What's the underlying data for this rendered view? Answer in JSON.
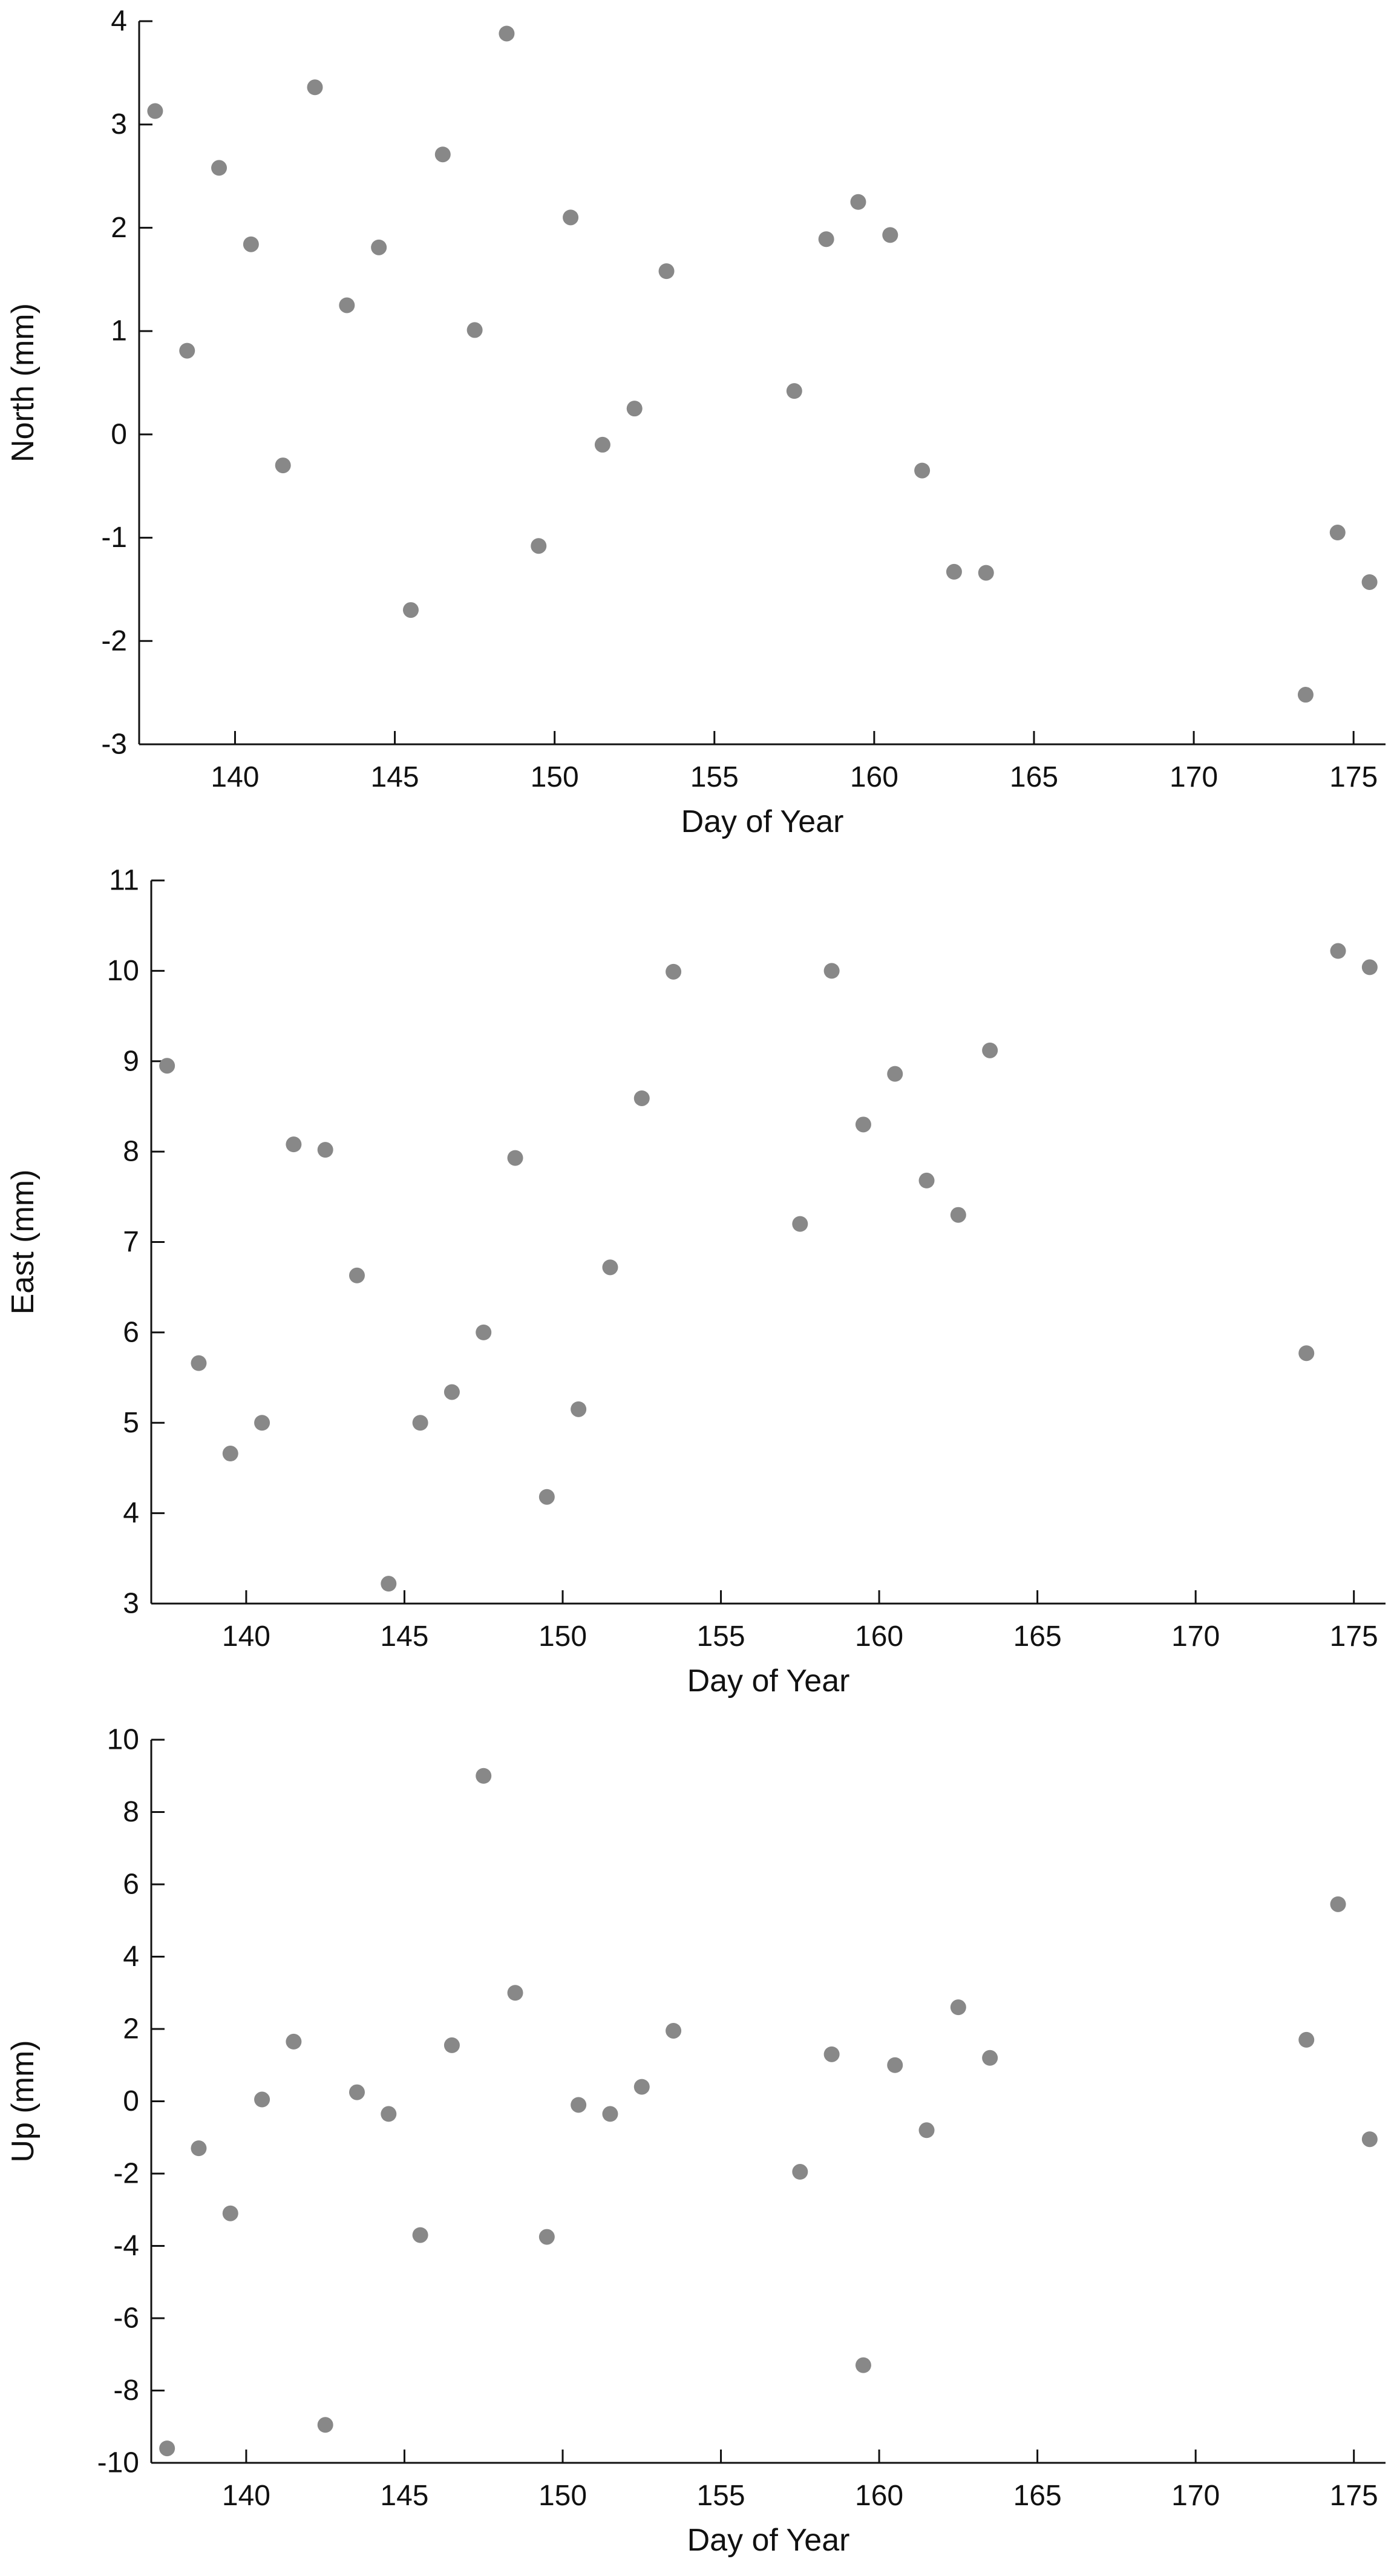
{
  "chart_data": [
    {
      "type": "scatter",
      "xlabel": "Day of Year",
      "ylabel": "North (mm)",
      "xlim": [
        137,
        176
      ],
      "ylim": [
        -3,
        4
      ],
      "xticks": [
        "140",
        "145",
        "150",
        "155",
        "160",
        "165",
        "170",
        "175"
      ],
      "yticks": [
        "-3",
        "-2",
        "-1",
        "0",
        "1",
        "2",
        "3",
        "4"
      ],
      "grid": false,
      "marker_color": "#888888",
      "series": [
        {
          "x": [
            137.5,
            138.5,
            139.5,
            140.5,
            141.5,
            142.5,
            143.5,
            144.5,
            145.5,
            146.5,
            147.5,
            148.5,
            149.5,
            150.5,
            151.5,
            152.5,
            153.5,
            157.5,
            158.5,
            159.5,
            160.5,
            161.5,
            162.5,
            163.5,
            173.5,
            174.5,
            175.5
          ],
          "y": [
            3.13,
            0.81,
            2.58,
            1.84,
            -0.3,
            3.36,
            1.25,
            1.81,
            -1.7,
            2.71,
            1.01,
            3.88,
            -1.08,
            2.1,
            -0.1,
            0.25,
            1.58,
            0.42,
            1.89,
            2.25,
            1.93,
            -0.35,
            -1.33,
            -1.34,
            -2.52,
            -0.95,
            -1.43
          ]
        }
      ]
    },
    {
      "type": "scatter",
      "xlabel": "Day of Year",
      "ylabel": "East (mm)",
      "xlim": [
        137,
        176
      ],
      "ylim": [
        3,
        11
      ],
      "xticks": [
        "140",
        "145",
        "150",
        "155",
        "160",
        "165",
        "170",
        "175"
      ],
      "yticks": [
        "3",
        "4",
        "5",
        "6",
        "7",
        "8",
        "9",
        "10",
        "11"
      ],
      "grid": false,
      "marker_color": "#888888",
      "series": [
        {
          "x": [
            137.5,
            138.5,
            139.5,
            140.5,
            141.5,
            142.5,
            143.5,
            144.5,
            145.5,
            146.5,
            147.5,
            148.5,
            149.5,
            150.5,
            151.5,
            152.5,
            153.5,
            157.5,
            158.5,
            159.5,
            160.5,
            161.5,
            162.5,
            163.5,
            173.5,
            174.5,
            175.5
          ],
          "y": [
            8.95,
            5.66,
            4.66,
            5.0,
            8.08,
            8.02,
            6.63,
            3.22,
            5.0,
            5.34,
            6.0,
            7.93,
            4.18,
            5.15,
            6.72,
            8.59,
            9.99,
            7.2,
            10.0,
            8.3,
            8.86,
            7.68,
            7.3,
            9.12,
            5.77,
            10.22,
            10.04
          ]
        }
      ]
    },
    {
      "type": "scatter",
      "xlabel": "Day of Year",
      "ylabel": "Up (mm)",
      "xlim": [
        137,
        176
      ],
      "ylim": [
        -10,
        10
      ],
      "xticks": [
        "140",
        "145",
        "150",
        "155",
        "160",
        "165",
        "170",
        "175"
      ],
      "yticks": [
        "-10",
        "-8",
        "-6",
        "-4",
        "-2",
        "0",
        "2",
        "4",
        "6",
        "8",
        "10"
      ],
      "grid": false,
      "marker_color": "#888888",
      "series": [
        {
          "x": [
            137.5,
            138.5,
            139.5,
            140.5,
            141.5,
            142.5,
            143.5,
            144.5,
            145.5,
            146.5,
            147.5,
            148.5,
            149.5,
            150.5,
            151.5,
            152.5,
            153.5,
            157.5,
            158.5,
            159.5,
            160.5,
            161.5,
            162.5,
            163.5,
            173.5,
            174.5,
            175.5
          ],
          "y": [
            -9.6,
            -1.3,
            -3.1,
            0.05,
            1.65,
            -8.95,
            0.25,
            -0.35,
            -3.7,
            1.55,
            9.0,
            3.0,
            -3.75,
            -0.1,
            -0.35,
            0.4,
            1.95,
            -1.95,
            1.3,
            -7.3,
            1.0,
            -0.8,
            2.6,
            1.2,
            1.7,
            5.45,
            -1.05
          ]
        }
      ]
    }
  ]
}
